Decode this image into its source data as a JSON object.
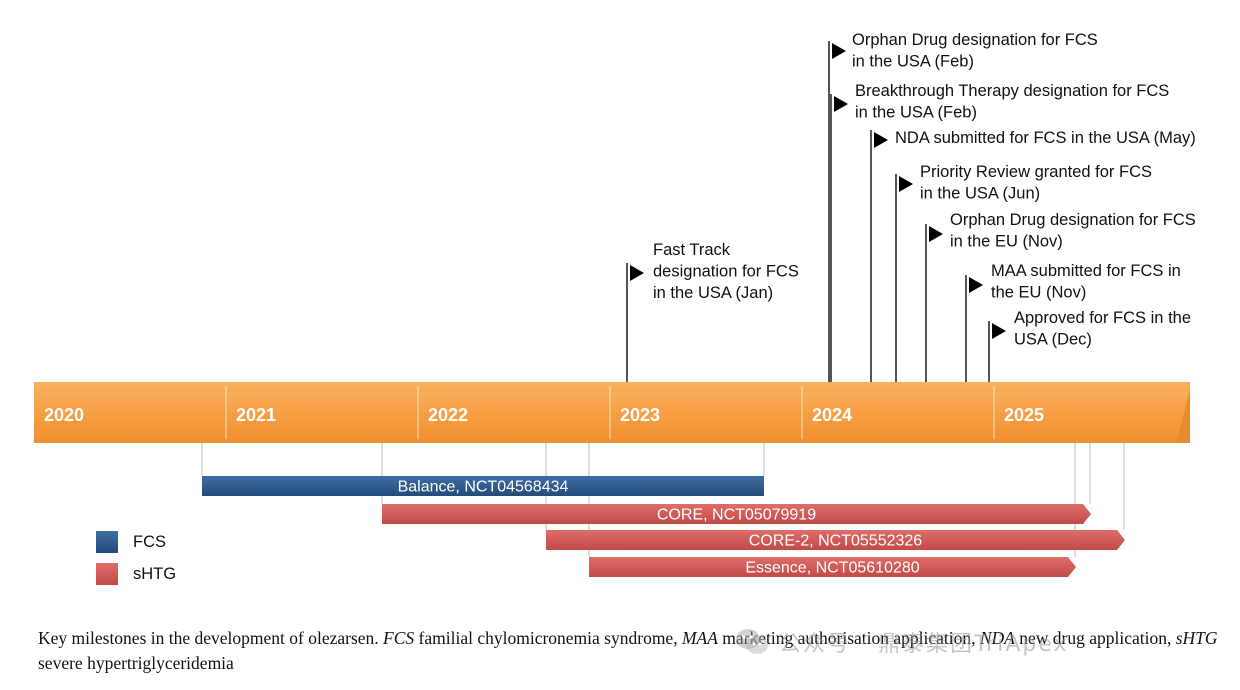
{
  "timeline": {
    "years": [
      "2020",
      "2021",
      "2022",
      "2023",
      "2024",
      "2025"
    ]
  },
  "milestones": [
    {
      "lines": [
        "Fast Track",
        "designation for FCS",
        "in the USA (Jan)"
      ]
    },
    {
      "lines": [
        "Orphan Drug designation for FCS",
        "in the USA (Feb)"
      ]
    },
    {
      "lines": [
        "Breakthrough Therapy designation for FCS",
        "in the USA (Feb)"
      ]
    },
    {
      "lines": [
        "NDA submitted for FCS in the USA (May)"
      ]
    },
    {
      "lines": [
        "Priority Review granted for FCS",
        "in the USA (Jun)"
      ]
    },
    {
      "lines": [
        "Orphan Drug designation for FCS",
        "in the EU (Nov)"
      ]
    },
    {
      "lines": [
        "MAA submitted for FCS in",
        "the EU (Nov)"
      ]
    },
    {
      "lines": [
        "Approved for FCS in the",
        "USA (Dec)"
      ]
    }
  ],
  "trials": [
    {
      "label": "Balance, NCT04568434",
      "type": "FCS"
    },
    {
      "label": "CORE, NCT05079919",
      "type": "sHTG"
    },
    {
      "label": "CORE-2, NCT05552326",
      "type": "sHTG"
    },
    {
      "label": "Essence, NCT05610280",
      "type": "sHTG"
    }
  ],
  "legend": [
    {
      "label": "FCS",
      "color": "#2e5a8c"
    },
    {
      "label": "sHTG",
      "color": "#cf5a57"
    }
  ],
  "colors": {
    "timeline_bar": "#f7a044",
    "fcs": "#2e5a8c",
    "shtg": "#cf5a57"
  },
  "caption": {
    "p1": "Key milestones in the development of olezarsen. ",
    "t1": "FCS",
    "p2": " familial chylomicronemia syndrome, ",
    "t2": "MAA",
    "p3": " marketing authorisation application, ",
    "t3": "NDA",
    "p4": " new drug application, ",
    "t4": "sHTG",
    "p5": " severe hypertriglyceridemia"
  },
  "watermark": {
    "text": "公众号 · 鼎泰集团TriApex"
  }
}
